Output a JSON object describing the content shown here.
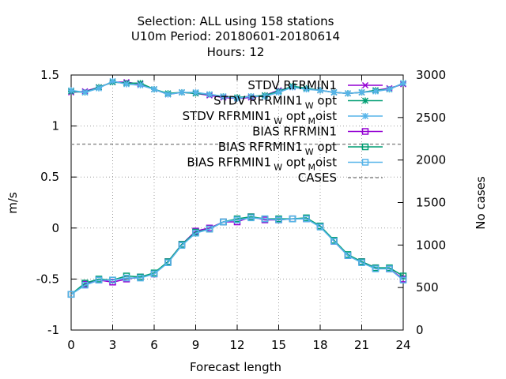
{
  "title_lines": [
    "Selection: ALL using   158 stations",
    "U10m   Period: 20180601-20180614",
    "Hours:  12"
  ],
  "chart_data": {
    "type": "line",
    "xlabel": "Forecast length",
    "ylabel": "m/s",
    "y2label": "No cases",
    "xlim": [
      0,
      24
    ],
    "ylim": [
      -1,
      1.5
    ],
    "y2lim": [
      0,
      3000
    ],
    "xticks": [
      "0",
      "3",
      "6",
      "9",
      "12",
      "15",
      "18",
      "21",
      "24"
    ],
    "yticks": [
      "-1",
      "-0.5",
      "0",
      "0.5",
      "1",
      "1.5"
    ],
    "y2ticks": [
      "0",
      "500",
      "1000",
      "1500",
      "2000",
      "2500",
      "3000"
    ],
    "grid": true,
    "legend_position": "top-right",
    "x": [
      0,
      1,
      2,
      3,
      4,
      5,
      6,
      7,
      8,
      9,
      10,
      11,
      12,
      13,
      14,
      15,
      16,
      17,
      18,
      19,
      20,
      21,
      22,
      23,
      24
    ],
    "series": [
      {
        "name": "STDV RFRMIN1",
        "legend": {
          "pre": "STDV RFRMIN1",
          "sub1": "",
          "mid": "",
          "sub2": "",
          "post": ""
        },
        "color": "#9400d3",
        "marker": "x",
        "axis": "y1",
        "dash": "solid",
        "values": [
          1.33,
          1.34,
          1.38,
          1.43,
          1.43,
          1.41,
          1.36,
          1.31,
          1.33,
          1.32,
          1.3,
          1.28,
          1.27,
          1.28,
          1.3,
          1.35,
          1.38,
          1.37,
          1.35,
          1.33,
          1.32,
          1.33,
          1.35,
          1.37,
          1.41
        ]
      },
      {
        "name": "STDV RFRMIN1 W opt",
        "legend": {
          "pre": "STDV RFRMIN1",
          "sub1": "W",
          "mid": " opt",
          "sub2": "",
          "post": ""
        },
        "color": "#009e73",
        "marker": "star",
        "axis": "y1",
        "dash": "solid",
        "values": [
          1.34,
          1.33,
          1.38,
          1.43,
          1.42,
          1.42,
          1.36,
          1.32,
          1.33,
          1.32,
          1.31,
          1.29,
          1.28,
          1.29,
          1.3,
          1.34,
          1.39,
          1.37,
          1.35,
          1.33,
          1.32,
          1.33,
          1.35,
          1.36,
          1.42
        ]
      },
      {
        "name": "STDV RFRMIN1 W opt M oist",
        "legend": {
          "pre": "STDV RFRMIN1",
          "sub1": "W",
          "mid": " opt",
          "sub2": "M",
          "post": "oist"
        },
        "color": "#56b4e9",
        "marker": "star",
        "axis": "y1",
        "dash": "solid",
        "values": [
          1.35,
          1.33,
          1.37,
          1.44,
          1.41,
          1.4,
          1.36,
          1.31,
          1.33,
          1.33,
          1.31,
          1.29,
          1.27,
          1.29,
          1.29,
          1.33,
          1.38,
          1.36,
          1.35,
          1.33,
          1.32,
          1.33,
          1.34,
          1.36,
          1.42
        ]
      },
      {
        "name": "BIAS RFRMIN1",
        "legend": {
          "pre": "BIAS RFRMIN1",
          "sub1": "",
          "mid": "",
          "sub2": "",
          "post": ""
        },
        "color": "#9400d3",
        "marker": "square",
        "axis": "y1",
        "dash": "solid",
        "values": [
          -0.65,
          -0.55,
          -0.51,
          -0.53,
          -0.5,
          -0.48,
          -0.45,
          -0.33,
          -0.16,
          -0.03,
          0.0,
          0.06,
          0.06,
          0.11,
          0.08,
          0.08,
          0.09,
          0.09,
          0.02,
          -0.13,
          -0.27,
          -0.33,
          -0.39,
          -0.4,
          -0.5
        ]
      },
      {
        "name": "BIAS RFRMIN1 W opt",
        "legend": {
          "pre": "BIAS RFRMIN1",
          "sub1": "W",
          "mid": " opt",
          "sub2": "",
          "post": ""
        },
        "color": "#009e73",
        "marker": "square",
        "axis": "y1",
        "dash": "solid",
        "values": [
          -0.65,
          -0.54,
          -0.5,
          -0.51,
          -0.47,
          -0.48,
          -0.44,
          -0.33,
          -0.16,
          -0.04,
          -0.01,
          0.06,
          0.09,
          0.11,
          0.09,
          0.09,
          0.09,
          0.1,
          0.02,
          -0.12,
          -0.26,
          -0.33,
          -0.39,
          -0.39,
          -0.47
        ]
      },
      {
        "name": "BIAS RFRMIN1 W opt M oist",
        "legend": {
          "pre": "BIAS RFRMIN1",
          "sub1": "W",
          "mid": " opt",
          "sub2": "M",
          "post": "oist"
        },
        "color": "#56b4e9",
        "marker": "square",
        "axis": "y1",
        "dash": "solid",
        "values": [
          -0.65,
          -0.56,
          -0.51,
          -0.51,
          -0.49,
          -0.49,
          -0.45,
          -0.34,
          -0.17,
          -0.05,
          -0.01,
          0.06,
          0.08,
          0.1,
          0.09,
          0.08,
          0.09,
          0.09,
          0.01,
          -0.13,
          -0.27,
          -0.34,
          -0.4,
          -0.4,
          -0.51
        ]
      },
      {
        "name": "CASES",
        "legend": {
          "pre": "CASES",
          "sub1": "",
          "mid": "",
          "sub2": "",
          "post": ""
        },
        "color": "#888888",
        "marker": "none",
        "axis": "y2",
        "dash": "dashed",
        "values": [
          2185,
          2187,
          2186,
          2187,
          2186,
          2187,
          2186,
          2185,
          2186,
          2187,
          2186,
          2187,
          2186,
          2185,
          2186,
          2187,
          2186,
          2187,
          2186,
          2185,
          2186,
          2187,
          2186,
          2187,
          2185
        ]
      }
    ]
  }
}
